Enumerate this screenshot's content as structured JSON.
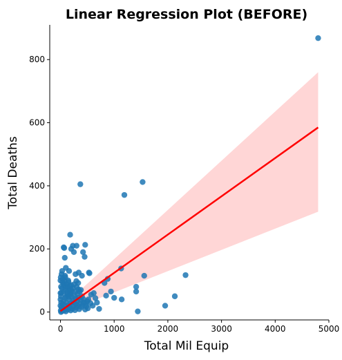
{
  "chart_data": {
    "type": "scatter",
    "title": "Linear Regression Plot (BEFORE)",
    "xlabel": "Total Mil Equip",
    "ylabel": "Total Deaths",
    "xlim": [
      -200,
      5000
    ],
    "ylim": [
      -25,
      910
    ],
    "xticks": [
      0,
      1000,
      2000,
      3000,
      4000,
      5000
    ],
    "yticks": [
      0,
      200,
      400,
      600,
      800
    ],
    "grid": false,
    "legend": "none",
    "colors": {
      "points": "#1f77b4",
      "line": "#ff0000",
      "band": "#ffcccc"
    },
    "series": [
      {
        "points": [
          [
            4800,
            868
          ],
          [
            370,
            405
          ],
          [
            1530,
            412
          ],
          [
            1190,
            371
          ],
          [
            180,
            245
          ],
          [
            60,
            205
          ],
          [
            70,
            203
          ],
          [
            230,
            210
          ],
          [
            300,
            210
          ],
          [
            460,
            213
          ],
          [
            200,
            200
          ],
          [
            250,
            190
          ],
          [
            420,
            190
          ],
          [
            450,
            175
          ],
          [
            80,
            172
          ],
          [
            100,
            140
          ],
          [
            30,
            130
          ],
          [
            160,
            130
          ],
          [
            20,
            120
          ],
          [
            280,
            120
          ],
          [
            340,
            125
          ],
          [
            530,
            125
          ],
          [
            540,
            123
          ],
          [
            1130,
            138
          ],
          [
            1560,
            115
          ],
          [
            2330,
            117
          ],
          [
            400,
            115
          ],
          [
            90,
            110
          ],
          [
            880,
            105
          ],
          [
            820,
            92
          ],
          [
            330,
            92
          ],
          [
            150,
            95
          ],
          [
            60,
            90
          ],
          [
            200,
            85
          ],
          [
            10,
            80
          ],
          [
            100,
            80
          ],
          [
            300,
            80
          ],
          [
            1410,
            80
          ],
          [
            940,
            65
          ],
          [
            1410,
            65
          ],
          [
            380,
            70
          ],
          [
            570,
            55
          ],
          [
            620,
            60
          ],
          [
            850,
            52
          ],
          [
            2130,
            50
          ],
          [
            1000,
            45
          ],
          [
            1140,
            40
          ],
          [
            430,
            40
          ],
          [
            520,
            40
          ],
          [
            720,
            10
          ],
          [
            1950,
            20
          ],
          [
            1440,
            2
          ],
          [
            510,
            12
          ],
          [
            460,
            8
          ],
          [
            250,
            30
          ],
          [
            5,
            5
          ],
          [
            10,
            0
          ],
          [
            20,
            15
          ],
          [
            30,
            3
          ],
          [
            40,
            25
          ],
          [
            50,
            10
          ],
          [
            60,
            35
          ],
          [
            70,
            5
          ],
          [
            80,
            20
          ],
          [
            90,
            45
          ],
          [
            100,
            2
          ],
          [
            110,
            30
          ],
          [
            120,
            12
          ],
          [
            130,
            55
          ],
          [
            140,
            8
          ],
          [
            150,
            22
          ],
          [
            160,
            40
          ],
          [
            170,
            15
          ],
          [
            180,
            60
          ],
          [
            190,
            5
          ],
          [
            200,
            28
          ],
          [
            210,
            48
          ],
          [
            220,
            10
          ],
          [
            230,
            35
          ],
          [
            240,
            18
          ],
          [
            260,
            50
          ],
          [
            270,
            6
          ],
          [
            280,
            25
          ],
          [
            290,
            42
          ],
          [
            300,
            14
          ],
          [
            310,
            33
          ],
          [
            320,
            20
          ],
          [
            340,
            45
          ],
          [
            350,
            9
          ],
          [
            360,
            27
          ],
          [
            380,
            38
          ],
          [
            390,
            16
          ],
          [
            400,
            50
          ],
          [
            410,
            22
          ],
          [
            440,
            30
          ],
          [
            470,
            26
          ],
          [
            480,
            18
          ],
          [
            500,
            34
          ],
          [
            560,
            28
          ],
          [
            600,
            20
          ],
          [
            650,
            44
          ],
          [
            680,
            30
          ],
          [
            15,
            60
          ],
          [
            25,
            75
          ],
          [
            35,
            95
          ],
          [
            45,
            105
          ],
          [
            55,
            65
          ],
          [
            65,
            85
          ],
          [
            75,
            100
          ],
          [
            85,
            115
          ],
          [
            95,
            70
          ],
          [
            105,
            50
          ],
          [
            115,
            88
          ],
          [
            125,
            62
          ],
          [
            135,
            78
          ],
          [
            145,
            100
          ],
          [
            155,
            48
          ],
          [
            165,
            68
          ],
          [
            175,
            82
          ],
          [
            185,
            58
          ],
          [
            195,
            72
          ],
          [
            215,
            66
          ],
          [
            235,
            76
          ],
          [
            255,
            88
          ],
          [
            275,
            64
          ],
          [
            295,
            98
          ],
          [
            315,
            58
          ],
          [
            335,
            72
          ],
          [
            355,
            65
          ],
          [
            0,
            100
          ],
          [
            0,
            60
          ],
          [
            0,
            40
          ],
          [
            0,
            20
          ],
          [
            5,
            110
          ],
          [
            8,
            50
          ],
          [
            12,
            30
          ]
        ]
      }
    ],
    "regression": {
      "x0": 0,
      "y0": 3,
      "x1": 4800,
      "y1": 585
    },
    "confidence_band": {
      "x": [
        0,
        4800
      ],
      "lower": [
        -5,
        318
      ],
      "upper": [
        12,
        760
      ]
    }
  }
}
